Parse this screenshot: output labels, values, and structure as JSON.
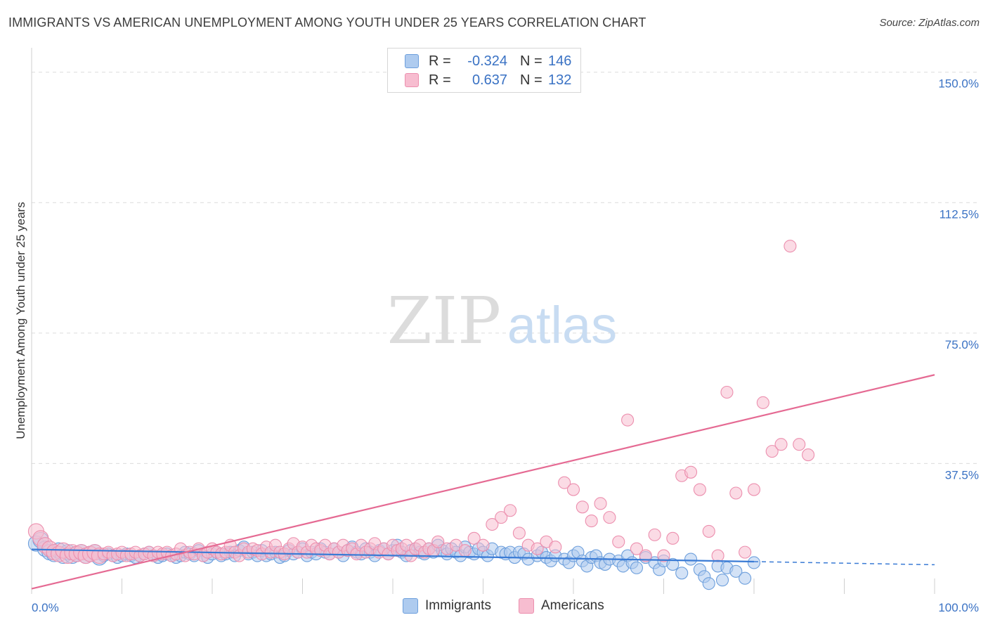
{
  "title": "IMMIGRANTS VS AMERICAN UNEMPLOYMENT AMONG YOUTH UNDER 25 YEARS CORRELATION CHART",
  "source": "Source: ZipAtlas.com",
  "watermark": {
    "zip": "ZIP",
    "atlas": "atlas"
  },
  "legend_top": [
    {
      "r_label": "R =",
      "r_value": "-0.324",
      "n_label": "N =",
      "n_value": "146"
    },
    {
      "r_label": "R =",
      "r_value": "0.637",
      "n_label": "N =",
      "n_value": "132"
    }
  ],
  "legend_bottom": [
    "Immigrants",
    "Americans"
  ],
  "colors": {
    "immigrants_fill": "#aecbef",
    "immigrants_stroke": "#6d9fdc",
    "immigrants_line": "#3a7bd5",
    "americans_fill": "#f7bdd0",
    "americans_stroke": "#ec8fae",
    "americans_line": "#e56a93",
    "tick_label": "#3a72c4",
    "grid": "#dcdcdc"
  },
  "chart_data": {
    "type": "scatter",
    "title": "IMMIGRANTS VS AMERICAN UNEMPLOYMENT AMONG YOUTH UNDER 25 YEARS CORRELATION CHART",
    "xlabel": "",
    "ylabel": "Unemployment Among Youth under 25 years",
    "xlim": [
      0,
      100
    ],
    "ylim": [
      0,
      155
    ],
    "x_tick_labels": [
      "0.0%",
      "100.0%"
    ],
    "y_ticks": [
      37.5,
      75.0,
      112.5,
      150.0
    ],
    "y_tick_labels": [
      "37.5%",
      "75.0%",
      "112.5%",
      "150.0%"
    ],
    "grid": true,
    "legend_position": "top-center and bottom",
    "series": [
      {
        "name": "Immigrants",
        "r": -0.324,
        "n": 146,
        "trend": {
          "x0": 0,
          "y0": 12.8,
          "x1": 80,
          "y1": 9.3,
          "dashed_to_x": 100,
          "dashed_to_y": 8.4
        },
        "points": [
          [
            0.5,
            14.5
          ],
          [
            1,
            15.5
          ],
          [
            1.5,
            13
          ],
          [
            2,
            12
          ],
          [
            2.5,
            11.5
          ],
          [
            3,
            12.5
          ],
          [
            3.5,
            11
          ],
          [
            4,
            12
          ],
          [
            4.5,
            11
          ],
          [
            5,
            11.5
          ],
          [
            5.5,
            12
          ],
          [
            6,
            11
          ],
          [
            6.5,
            11.5
          ],
          [
            7,
            12
          ],
          [
            7.5,
            10.5
          ],
          [
            8,
            11
          ],
          [
            8.5,
            11.5
          ],
          [
            9,
            11
          ],
          [
            9.5,
            10.5
          ],
          [
            10,
            11
          ],
          [
            10.5,
            11.5
          ],
          [
            11,
            11
          ],
          [
            11.5,
            10.5
          ],
          [
            12,
            11
          ],
          [
            12.5,
            11.5
          ],
          [
            13,
            12
          ],
          [
            13.5,
            11
          ],
          [
            14,
            10.5
          ],
          [
            14.5,
            11
          ],
          [
            15,
            11.5
          ],
          [
            15.5,
            11
          ],
          [
            16,
            10.5
          ],
          [
            16.5,
            11
          ],
          [
            17,
            12
          ],
          [
            17.5,
            11.5
          ],
          [
            18,
            11
          ],
          [
            18.5,
            12.5
          ],
          [
            19,
            11
          ],
          [
            19.5,
            10.5
          ],
          [
            20,
            11.5
          ],
          [
            20.5,
            12
          ],
          [
            21,
            11
          ],
          [
            21.5,
            11.5
          ],
          [
            22,
            12
          ],
          [
            22.5,
            11
          ],
          [
            23,
            12.5
          ],
          [
            23.5,
            13.5
          ],
          [
            24,
            11.5
          ],
          [
            24.5,
            12
          ],
          [
            25,
            11
          ],
          [
            25.5,
            12.5
          ],
          [
            26,
            11
          ],
          [
            26.5,
            11.5
          ],
          [
            27,
            12
          ],
          [
            27.5,
            10.5
          ],
          [
            28,
            11
          ],
          [
            28.5,
            12.5
          ],
          [
            29,
            11.5
          ],
          [
            29.5,
            12
          ],
          [
            30,
            13
          ],
          [
            30.5,
            11
          ],
          [
            31,
            12
          ],
          [
            31.5,
            11.5
          ],
          [
            32,
            13
          ],
          [
            32.5,
            12
          ],
          [
            33,
            11.5
          ],
          [
            33.5,
            13
          ],
          [
            34,
            12
          ],
          [
            34.5,
            11
          ],
          [
            35,
            12.5
          ],
          [
            35.5,
            13.5
          ],
          [
            36,
            12
          ],
          [
            36.5,
            11.5
          ],
          [
            37,
            13
          ],
          [
            37.5,
            12
          ],
          [
            38,
            11
          ],
          [
            38.5,
            12.5
          ],
          [
            39,
            13
          ],
          [
            39.5,
            11.5
          ],
          [
            40,
            12.5
          ],
          [
            40.5,
            14
          ],
          [
            41,
            12
          ],
          [
            41.5,
            11
          ],
          [
            42,
            12.5
          ],
          [
            42.5,
            13
          ],
          [
            43,
            12
          ],
          [
            43.5,
            11.5
          ],
          [
            44,
            13
          ],
          [
            44.5,
            12
          ],
          [
            45,
            14
          ],
          [
            45.5,
            12.5
          ],
          [
            46,
            11.5
          ],
          [
            46.5,
            13
          ],
          [
            47,
            12
          ],
          [
            47.5,
            11
          ],
          [
            48,
            13.5
          ],
          [
            48.5,
            12
          ],
          [
            49,
            11.5
          ],
          [
            49.5,
            13
          ],
          [
            50,
            12
          ],
          [
            50.5,
            11
          ],
          [
            51,
            13
          ],
          [
            52,
            12
          ],
          [
            52.5,
            11.5
          ],
          [
            53,
            12
          ],
          [
            53.5,
            10.5
          ],
          [
            54,
            12
          ],
          [
            54.5,
            11.5
          ],
          [
            55,
            10
          ],
          [
            56,
            11
          ],
          [
            56.5,
            12
          ],
          [
            57,
            10.5
          ],
          [
            57.5,
            9.5
          ],
          [
            58,
            11
          ],
          [
            59,
            10
          ],
          [
            59.5,
            9
          ],
          [
            60,
            11
          ],
          [
            60.5,
            12
          ],
          [
            61,
            9.5
          ],
          [
            61.5,
            8
          ],
          [
            62,
            10.5
          ],
          [
            62.5,
            11
          ],
          [
            63,
            9
          ],
          [
            63.5,
            8.5
          ],
          [
            64,
            10
          ],
          [
            65,
            9.5
          ],
          [
            65.5,
            8
          ],
          [
            66,
            11
          ],
          [
            66.5,
            9
          ],
          [
            67,
            7.5
          ],
          [
            68,
            10.5
          ],
          [
            69,
            9
          ],
          [
            69.5,
            7
          ],
          [
            70,
            9.5
          ],
          [
            71,
            8.5
          ],
          [
            72,
            6
          ],
          [
            73,
            10
          ],
          [
            74,
            7
          ],
          [
            74.5,
            5
          ],
          [
            75,
            3
          ],
          [
            76,
            8
          ],
          [
            76.5,
            4
          ],
          [
            77,
            7.5
          ],
          [
            78,
            6.5
          ],
          [
            79,
            4.5
          ],
          [
            80,
            9
          ]
        ]
      },
      {
        "name": "Americans",
        "r": 0.637,
        "n": 132,
        "trend": {
          "x0": 0,
          "y0": 1.5,
          "x1": 100,
          "y1": 63
        },
        "points": [
          [
            0.5,
            18
          ],
          [
            1,
            16
          ],
          [
            1.5,
            14
          ],
          [
            2,
            13
          ],
          [
            2.5,
            12
          ],
          [
            3,
            11.5
          ],
          [
            3.5,
            12.5
          ],
          [
            4,
            11
          ],
          [
            4.5,
            12
          ],
          [
            5,
            11.5
          ],
          [
            5.5,
            12
          ],
          [
            6,
            11
          ],
          [
            6.5,
            11.5
          ],
          [
            7,
            12
          ],
          [
            7.5,
            11
          ],
          [
            8,
            11.5
          ],
          [
            8.5,
            12
          ],
          [
            9,
            11
          ],
          [
            9.5,
            11.5
          ],
          [
            10,
            12
          ],
          [
            10.5,
            11
          ],
          [
            11,
            11.5
          ],
          [
            11.5,
            12
          ],
          [
            12,
            11
          ],
          [
            12.5,
            11.5
          ],
          [
            13,
            12
          ],
          [
            13.5,
            11
          ],
          [
            14,
            12
          ],
          [
            14.5,
            11.5
          ],
          [
            15,
            12
          ],
          [
            15.5,
            11
          ],
          [
            16,
            11.5
          ],
          [
            16.5,
            13
          ],
          [
            17,
            11
          ],
          [
            17.5,
            12
          ],
          [
            18,
            11.5
          ],
          [
            18.5,
            13
          ],
          [
            19,
            11
          ],
          [
            19.5,
            12
          ],
          [
            20,
            13
          ],
          [
            20.5,
            12
          ],
          [
            21,
            11.5
          ],
          [
            21.5,
            12
          ],
          [
            22,
            14
          ],
          [
            22.5,
            12
          ],
          [
            23,
            11
          ],
          [
            23.5,
            13
          ],
          [
            24,
            12
          ],
          [
            24.5,
            13
          ],
          [
            25,
            12.5
          ],
          [
            25.5,
            11.5
          ],
          [
            26,
            13.5
          ],
          [
            26.5,
            12
          ],
          [
            27,
            14
          ],
          [
            27.5,
            12
          ],
          [
            28,
            11.5
          ],
          [
            28.5,
            13
          ],
          [
            29,
            14.5
          ],
          [
            29.5,
            12
          ],
          [
            30,
            13.5
          ],
          [
            30.5,
            12
          ],
          [
            31,
            14
          ],
          [
            31.5,
            13
          ],
          [
            32,
            12.5
          ],
          [
            32.5,
            14
          ],
          [
            33,
            11.5
          ],
          [
            33.5,
            13
          ],
          [
            34,
            12
          ],
          [
            34.5,
            14
          ],
          [
            35,
            12.5
          ],
          [
            35.5,
            13
          ],
          [
            36,
            11.5
          ],
          [
            36.5,
            14
          ],
          [
            37,
            12
          ],
          [
            37.5,
            13
          ],
          [
            38,
            14.5
          ],
          [
            38.5,
            12
          ],
          [
            39,
            13
          ],
          [
            39.5,
            11.5
          ],
          [
            40,
            14
          ],
          [
            40.5,
            12.5
          ],
          [
            41,
            13
          ],
          [
            41.5,
            14
          ],
          [
            42,
            11
          ],
          [
            42.5,
            13
          ],
          [
            43,
            14
          ],
          [
            43.5,
            12
          ],
          [
            44,
            13
          ],
          [
            44.5,
            12.5
          ],
          [
            45,
            15
          ],
          [
            46,
            13
          ],
          [
            47,
            14
          ],
          [
            48,
            12.5
          ],
          [
            49,
            16
          ],
          [
            50,
            14
          ],
          [
            51,
            20
          ],
          [
            52,
            22
          ],
          [
            53,
            24
          ],
          [
            54,
            17.5
          ],
          [
            55,
            14
          ],
          [
            56,
            13
          ],
          [
            57,
            15
          ],
          [
            58,
            13.5
          ],
          [
            59,
            32
          ],
          [
            60,
            30
          ],
          [
            61,
            25
          ],
          [
            62,
            21
          ],
          [
            63,
            26
          ],
          [
            64,
            22
          ],
          [
            65,
            15
          ],
          [
            66,
            50
          ],
          [
            67,
            13
          ],
          [
            68,
            11
          ],
          [
            69,
            17
          ],
          [
            70,
            11
          ],
          [
            71,
            16
          ],
          [
            72,
            34
          ],
          [
            73,
            35
          ],
          [
            74,
            30
          ],
          [
            75,
            18
          ],
          [
            76,
            11
          ],
          [
            77,
            58
          ],
          [
            78,
            29
          ],
          [
            79,
            12
          ],
          [
            80,
            30
          ],
          [
            81,
            55
          ],
          [
            82,
            41
          ],
          [
            83,
            43
          ],
          [
            84,
            100
          ],
          [
            85,
            43
          ],
          [
            86,
            40
          ]
        ]
      }
    ]
  }
}
